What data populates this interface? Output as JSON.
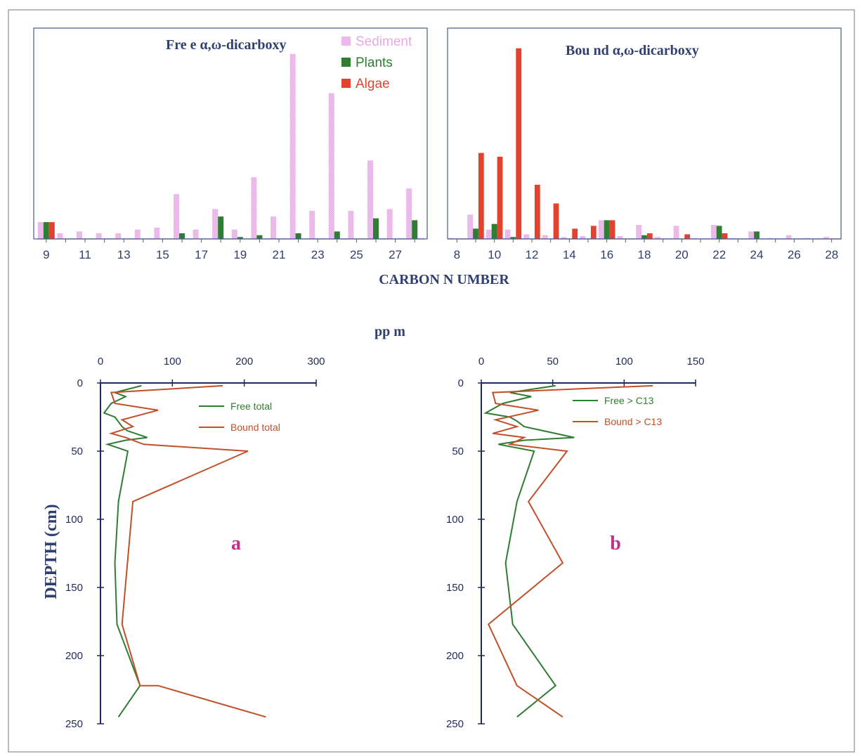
{
  "figure": {
    "xlabel_top": "CARBON N UMBER",
    "ppm_label": "pp m",
    "ylabel_bottom": "DEPTH (cm)"
  },
  "chart_data": [
    {
      "type": "bar",
      "title": "Fre e α,ω-dicarboxy",
      "xlabel": "CARBON N UMBER",
      "categories": [
        9,
        10,
        11,
        12,
        13,
        14,
        15,
        16,
        17,
        18,
        19,
        20,
        21,
        22,
        23,
        24,
        25,
        26,
        27,
        28
      ],
      "tick_labels": [
        "9",
        "11",
        "13",
        "15",
        "17",
        "19",
        "21",
        "23",
        "25",
        "27"
      ],
      "ylim": [
        0,
        100
      ],
      "legend_position": "top-right",
      "series": [
        {
          "name": "Sediment",
          "color": "#e6a9e6",
          "values": [
            9,
            3,
            4,
            3,
            3,
            5,
            6,
            24,
            5,
            16,
            5,
            33,
            12,
            99,
            15,
            78,
            15,
            42,
            16,
            27
          ]
        },
        {
          "name": "Plants",
          "color": "#2e7d32",
          "values": [
            9,
            0,
            0,
            0,
            0,
            0,
            0,
            3,
            0,
            12,
            1,
            2,
            0,
            3,
            0,
            4,
            0,
            11,
            0,
            10
          ]
        },
        {
          "name": "Algae",
          "color": "#e0442f",
          "values": [
            9,
            0,
            0,
            0,
            0,
            0,
            0,
            0,
            0,
            0,
            0,
            0,
            0,
            0,
            0,
            0,
            0,
            0,
            0,
            0
          ]
        }
      ]
    },
    {
      "type": "bar",
      "title": "Bou nd α,ω-dicarboxy",
      "xlabel": "CARBON N UMBER",
      "categories": [
        8,
        9,
        10,
        11,
        12,
        13,
        14,
        15,
        16,
        17,
        18,
        19,
        20,
        21,
        22,
        23,
        24,
        25,
        26,
        27,
        28
      ],
      "tick_labels": [
        "8",
        "10",
        "12",
        "14",
        "16",
        "18",
        "20",
        "22",
        "24",
        "26",
        "28"
      ],
      "ylim": [
        0,
        100
      ],
      "series": [
        {
          "name": "Sediment",
          "color": "#e6a9e6",
          "values": [
            0.5,
            13,
            5,
            5,
            2.5,
            2,
            1,
            1.5,
            10,
            1.5,
            7.5,
            1,
            7,
            0.5,
            7.5,
            0.5,
            4,
            0.5,
            2,
            0.5,
            1
          ]
        },
        {
          "name": "Plants",
          "color": "#2e7d32",
          "values": [
            0,
            5.5,
            8,
            1,
            0,
            0,
            0,
            0,
            10,
            0,
            2,
            0,
            0,
            0,
            7,
            0,
            4,
            0,
            0,
            0,
            0
          ]
        },
        {
          "name": "Algae",
          "color": "#e0442f",
          "values": [
            0,
            46,
            44,
            102,
            29,
            19,
            5.5,
            7,
            10,
            0,
            3,
            0,
            2.5,
            0,
            3,
            0,
            0,
            0,
            0,
            0,
            0
          ]
        }
      ]
    },
    {
      "type": "line",
      "panel_label": "a",
      "xlabel": "pp m",
      "ylabel": "DEPTH (cm)",
      "xlim": [
        0,
        300
      ],
      "ylim": [
        0,
        250
      ],
      "x_ticks": [
        0,
        100,
        200,
        300
      ],
      "y_ticks": [
        0,
        50,
        100,
        150,
        200,
        250
      ],
      "y_inverted": true,
      "series": [
        {
          "name": "Free total",
          "color": "#2e7d32",
          "x": [
            57,
            20,
            35,
            15,
            5,
            20,
            30,
            37,
            65,
            35,
            10,
            38,
            25,
            20,
            23,
            55,
            25
          ],
          "y": [
            2,
            7,
            10,
            15,
            22,
            25,
            32,
            35,
            40,
            42,
            45,
            50,
            87,
            132,
            177,
            222,
            245
          ]
        },
        {
          "name": "Bound total",
          "color": "#c0502a",
          "x": [
            170,
            15,
            20,
            80,
            30,
            45,
            15,
            35,
            60,
            205,
            45,
            30,
            55,
            80,
            230
          ],
          "y": [
            2,
            7,
            15,
            20,
            27,
            32,
            37,
            40,
            45,
            50,
            87,
            177,
            222,
            222,
            245
          ]
        }
      ]
    },
    {
      "type": "line",
      "panel_label": "b",
      "xlabel": "pp m",
      "ylabel": "DEPTH (cm)",
      "xlim": [
        0,
        150
      ],
      "ylim": [
        0,
        250
      ],
      "x_ticks": [
        0,
        50,
        100,
        150
      ],
      "y_ticks": [
        0,
        50,
        100,
        150,
        200,
        250
      ],
      "y_inverted": true,
      "series": [
        {
          "name": "Free > C13",
          "color": "#2e7d32",
          "x": [
            52,
            20,
            35,
            15,
            3,
            20,
            25,
            30,
            65,
            30,
            12,
            37,
            25,
            17,
            22,
            52,
            25
          ],
          "y": [
            2,
            7,
            10,
            15,
            22,
            25,
            28,
            32,
            40,
            42,
            45,
            50,
            87,
            132,
            177,
            222,
            245
          ]
        },
        {
          "name": "Bound > C13",
          "color": "#c0502a",
          "x": [
            120,
            8,
            10,
            40,
            10,
            25,
            8,
            30,
            20,
            60,
            33,
            57,
            5,
            25,
            57
          ],
          "y": [
            2,
            7,
            15,
            20,
            27,
            32,
            37,
            40,
            45,
            50,
            87,
            132,
            177,
            222,
            245
          ]
        }
      ]
    }
  ]
}
